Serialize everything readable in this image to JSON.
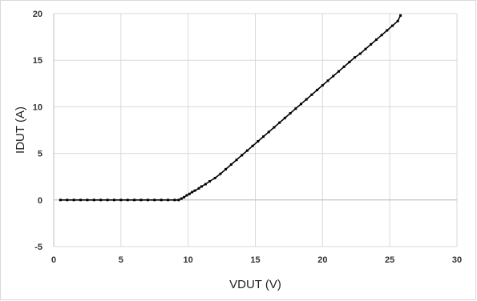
{
  "chart_data": {
    "type": "scatter",
    "xlabel": "VDUT (V)",
    "ylabel": "IDUT (A)",
    "xlim": [
      0,
      30
    ],
    "ylim": [
      -5,
      20
    ],
    "xticks": [
      0,
      5,
      10,
      15,
      20,
      25,
      30
    ],
    "yticks": [
      -5,
      0,
      5,
      10,
      15,
      20
    ],
    "grid": true,
    "legend": "none",
    "marker_color": "#000000",
    "series": [
      {
        "x": [
          0.5,
          1.0,
          1.5,
          2.0,
          2.5,
          3.0,
          3.5,
          4.0,
          4.5,
          5.0,
          5.5,
          6.0,
          6.5,
          7.0,
          7.5,
          8.0,
          8.5,
          9.0,
          9.3,
          9.5,
          9.7,
          9.9,
          10.1,
          10.3,
          10.5,
          10.8,
          11.0,
          11.3,
          11.6,
          12.0,
          12.4,
          12.8,
          13.2,
          13.6,
          14.0,
          14.4,
          14.8,
          15.2,
          15.6,
          16.0,
          16.4,
          16.8,
          17.2,
          17.6,
          18.0,
          18.4,
          18.8,
          19.2,
          19.6,
          20.0,
          20.4,
          20.8,
          21.2,
          21.6,
          22.0,
          22.4,
          22.8,
          23.2,
          23.6,
          24.0,
          24.4,
          24.8,
          25.2,
          25.6,
          25.8
        ],
        "y": [
          0,
          0,
          0,
          0,
          0,
          0,
          0,
          0,
          0,
          0,
          0,
          0,
          0,
          0,
          0,
          0,
          0,
          0,
          0.0,
          0.15,
          0.3,
          0.5,
          0.65,
          0.85,
          1.0,
          1.25,
          1.45,
          1.7,
          2.0,
          2.35,
          2.8,
          3.3,
          3.8,
          4.3,
          4.8,
          5.3,
          5.8,
          6.3,
          6.8,
          7.3,
          7.8,
          8.3,
          8.8,
          9.3,
          9.8,
          10.3,
          10.8,
          11.3,
          11.8,
          12.3,
          12.8,
          13.3,
          13.8,
          14.3,
          14.8,
          15.3,
          15.7,
          16.2,
          16.7,
          17.2,
          17.7,
          18.2,
          18.7,
          19.2,
          19.8
        ]
      }
    ]
  }
}
